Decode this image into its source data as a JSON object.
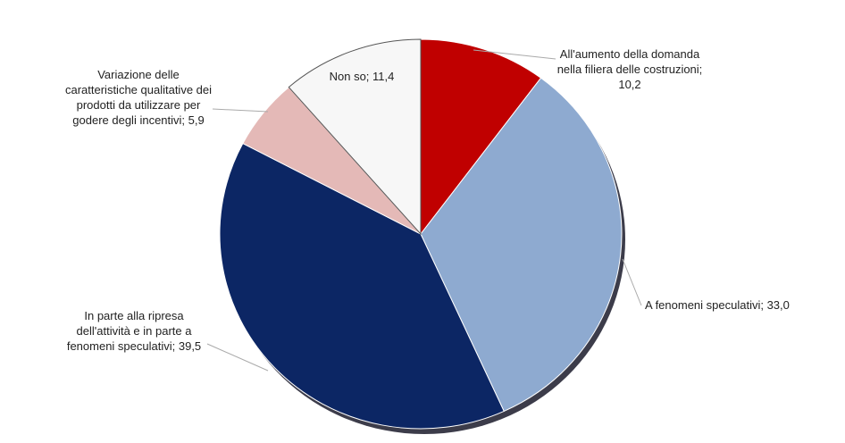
{
  "chart_data": {
    "type": "pie",
    "values": [
      10.2,
      33.0,
      39.5,
      5.9,
      11.4
    ],
    "value_labels": [
      "All'aumento della domanda nella filiera delle costruzioni; 10,2",
      "A fenomeni speculativi; 33,0",
      "In parte alla ripresa dell'attività e in parte a fenomeni speculativi; 39,5",
      "Variazione delle caratteristiche qualitative dei prodotti da utilizzare per godere degli incentivi; 5,9",
      "Non so; 11,4"
    ],
    "colors": [
      "#c00000",
      "#8eaad0",
      "#0c2664",
      "#e4b9b7",
      "#f7f7f7"
    ]
  }
}
